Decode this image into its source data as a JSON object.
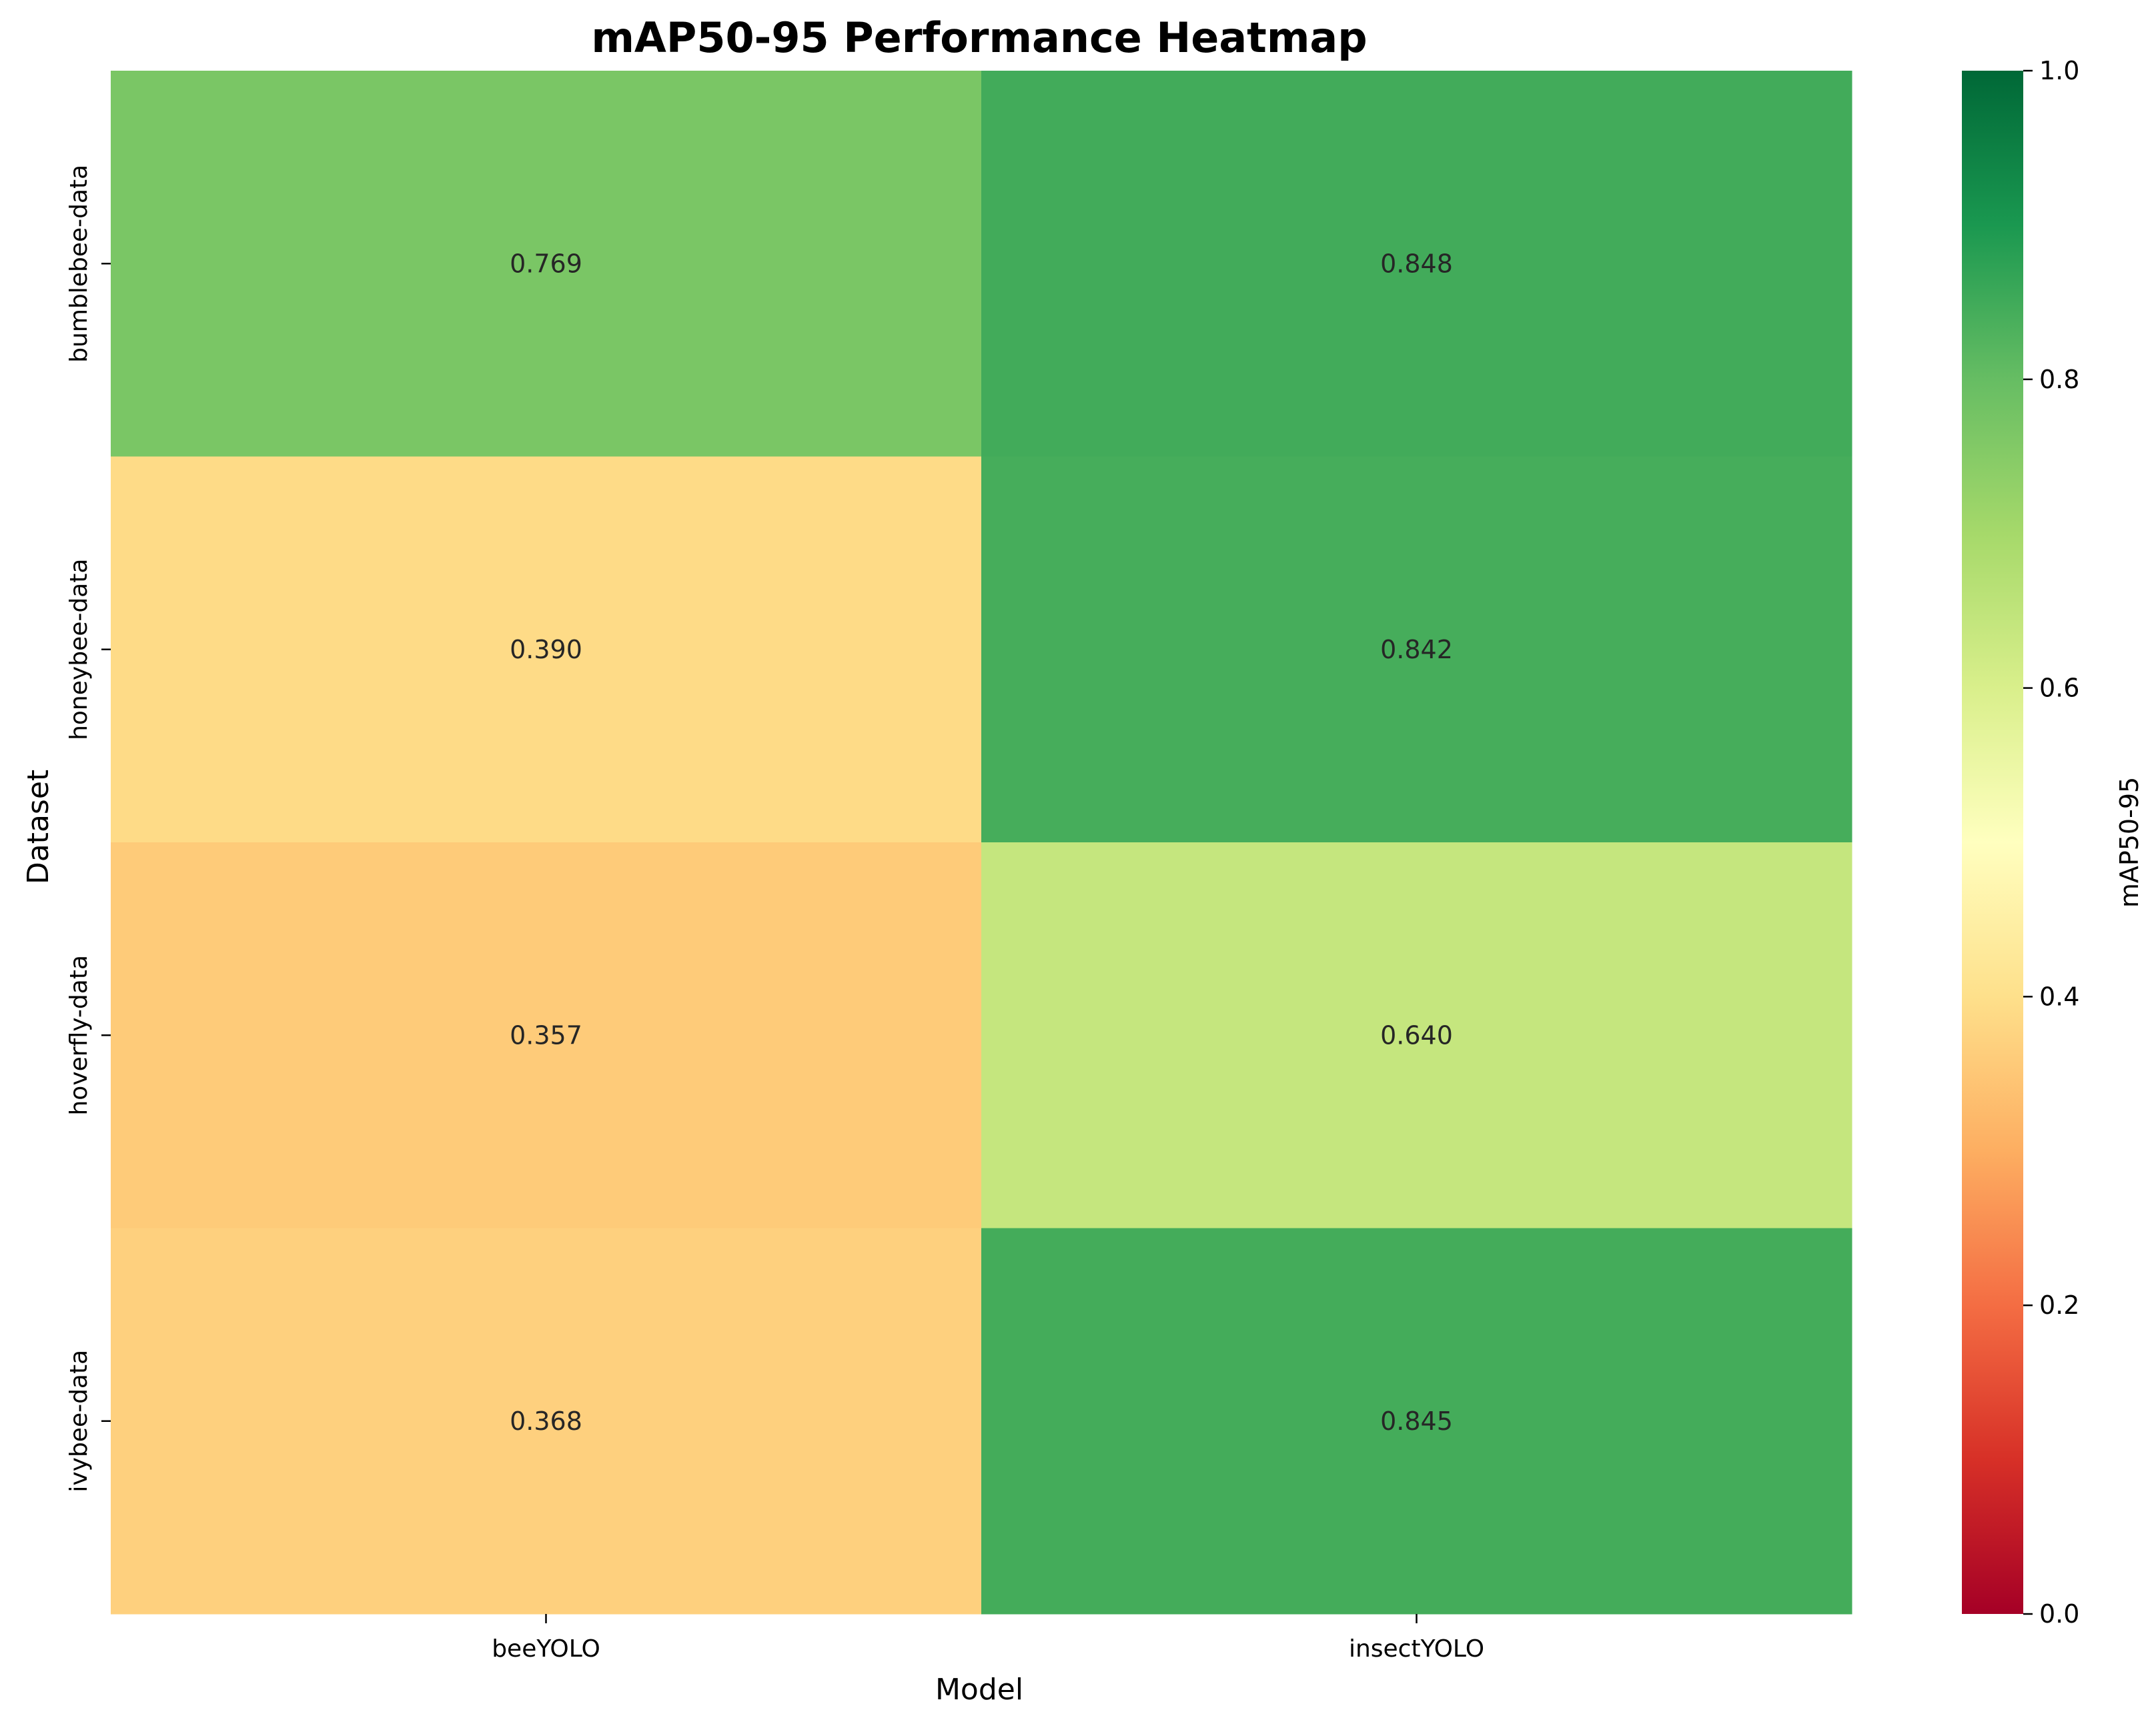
{
  "chart_data": {
    "type": "heatmap",
    "title": "mAP50-95 Performance Heatmap",
    "xlabel": "Model",
    "ylabel": "Dataset",
    "columns": [
      "beeYOLO",
      "insectYOLO"
    ],
    "rows": [
      "bumblebee-data",
      "honeybee-data",
      "hoverfly-data",
      "ivybee-data"
    ],
    "values": [
      [
        0.769,
        0.848
      ],
      [
        0.39,
        0.842
      ],
      [
        0.357,
        0.64
      ],
      [
        0.368,
        0.845
      ]
    ],
    "value_format": "3 decimals",
    "colormap": "RdYlGn",
    "colorbar": {
      "label": "mAP50-95",
      "range": [
        0.0,
        1.0
      ],
      "ticks": [
        "0.0",
        "0.2",
        "0.4",
        "0.6",
        "0.8",
        "1.0"
      ]
    }
  }
}
